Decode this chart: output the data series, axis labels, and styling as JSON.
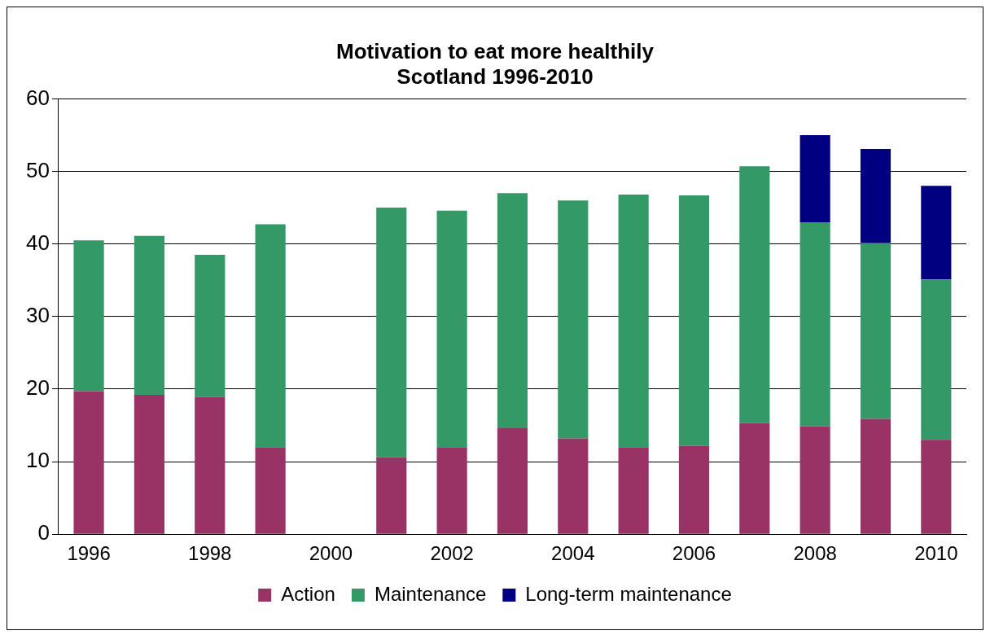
{
  "chart_data": {
    "type": "bar",
    "title": "Motivation to eat more healthily",
    "subtitle": "Scotland 1996-2010",
    "stacked": true,
    "categories": [
      "1996",
      null,
      "1998",
      null,
      "2000",
      null,
      "2002",
      null,
      "2004",
      null,
      "2006",
      null,
      "2008",
      null,
      "2010"
    ],
    "series": [
      {
        "name": "Action",
        "color": "#993366",
        "values": [
          19.7,
          19.2,
          18.9,
          12.0,
          null,
          10.6,
          12.0,
          14.6,
          13.2,
          12.0,
          12.2,
          15.3,
          14.9,
          15.9,
          13.0
        ]
      },
      {
        "name": "Maintenance",
        "color": "#339966",
        "values": [
          20.8,
          21.9,
          19.6,
          30.7,
          null,
          34.4,
          32.6,
          32.4,
          32.8,
          34.8,
          34.5,
          35.4,
          28.1,
          24.2,
          22.1
        ]
      },
      {
        "name": "Long-term maintenance",
        "color": "#000080",
        "values": [
          null,
          null,
          null,
          null,
          null,
          null,
          null,
          null,
          null,
          null,
          null,
          null,
          12.0,
          13.0,
          12.9
        ]
      }
    ],
    "ylim": [
      0,
      60
    ],
    "yticks": [
      0,
      10,
      20,
      30,
      40,
      50,
      60
    ],
    "grid": "y",
    "legend": "bottom"
  }
}
